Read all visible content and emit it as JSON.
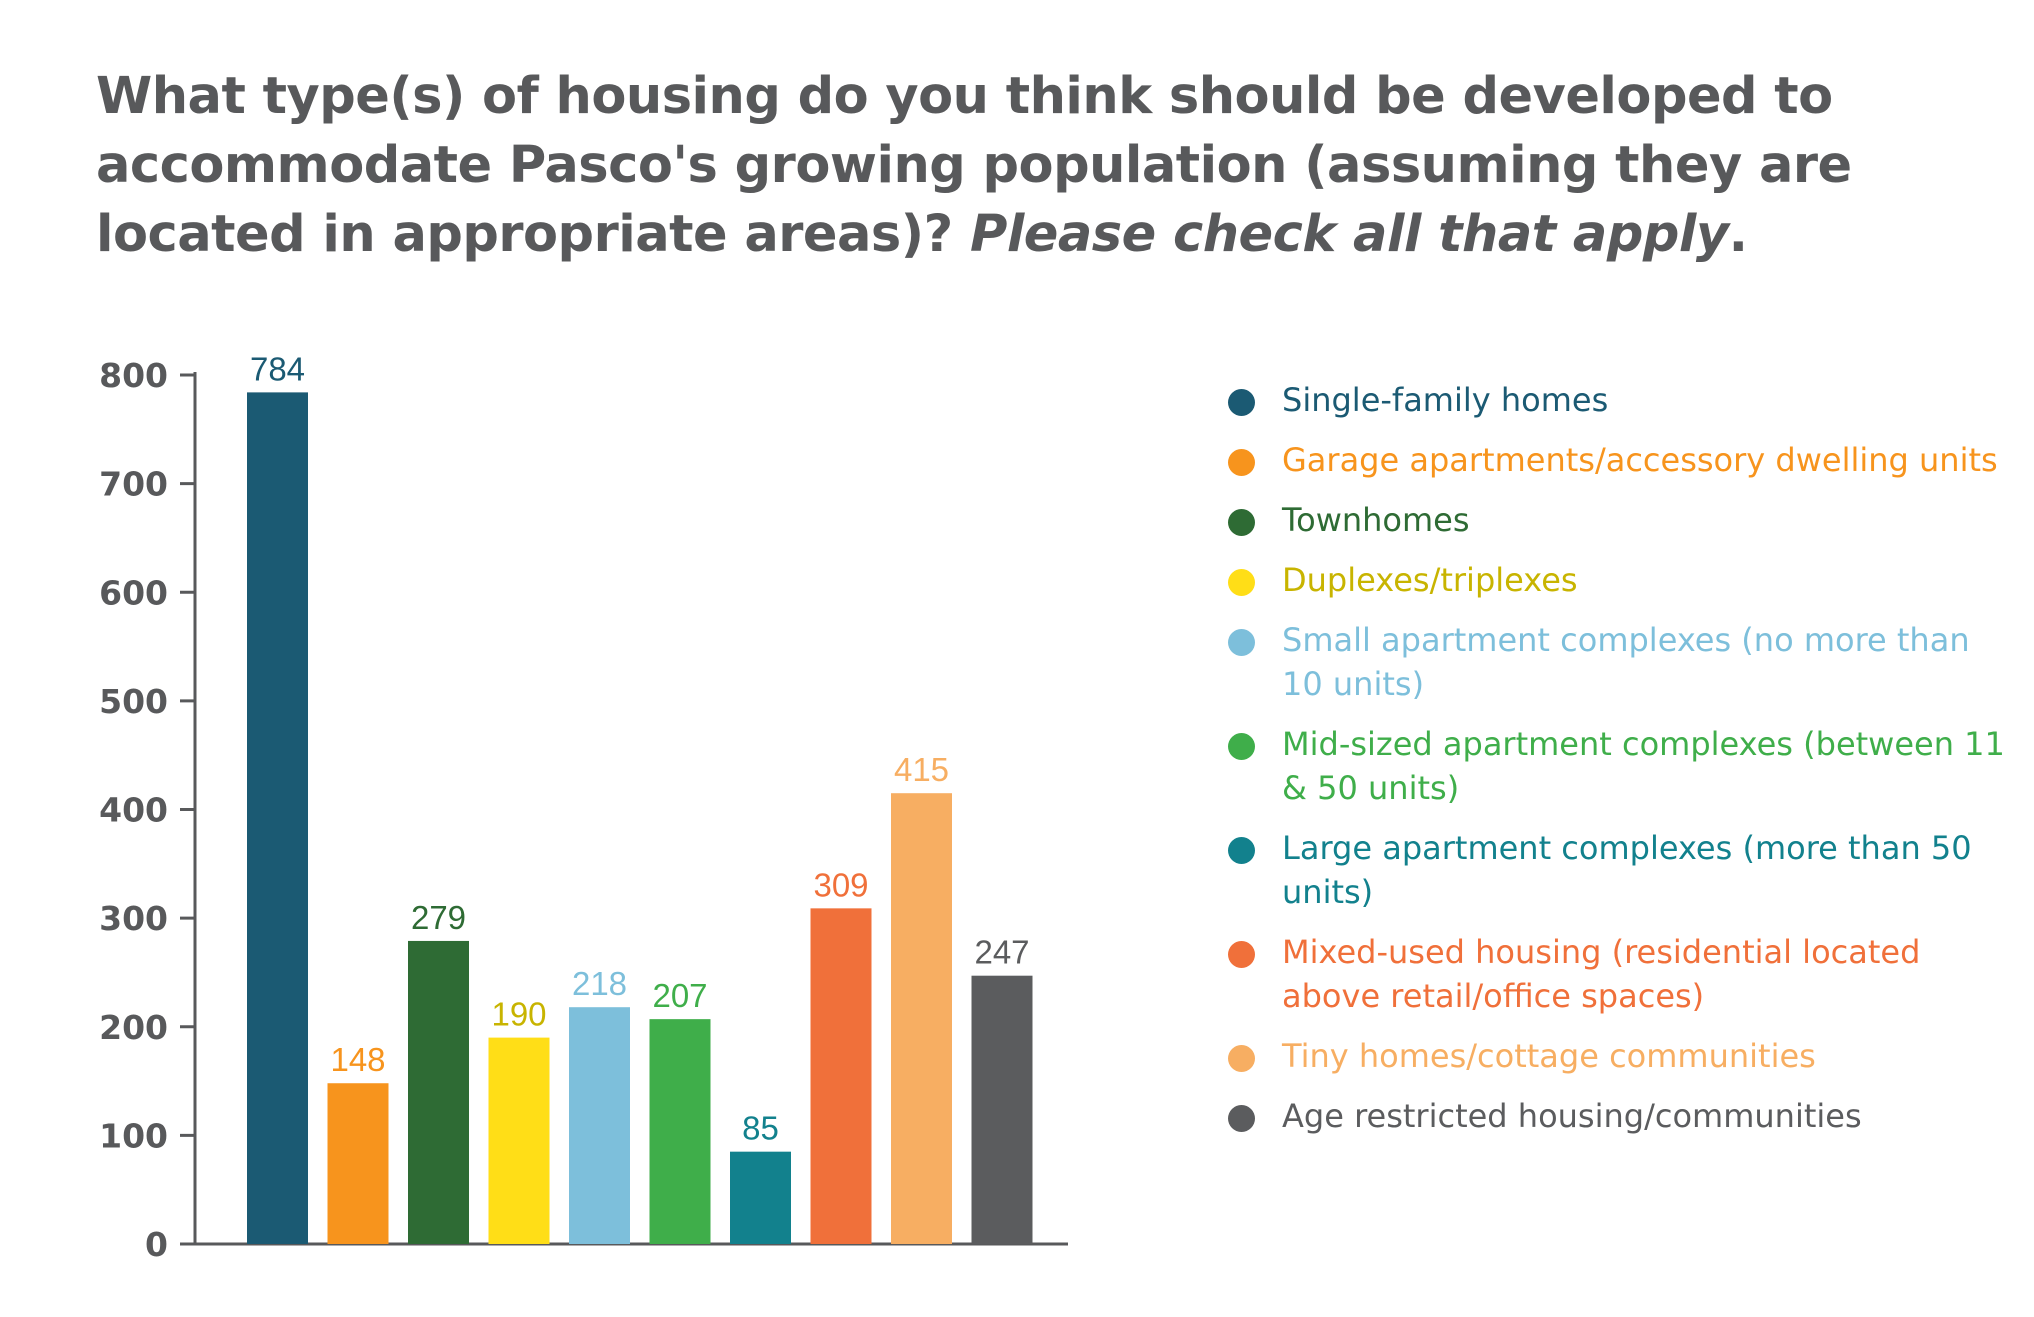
{
  "title": {
    "main": "What type(s) of housing do you think should be developed to accommodate Pasco's growing population (assuming they are located in appropriate areas)?",
    "emphasis": "Please check all that apply",
    "end": "."
  },
  "chart_data": {
    "type": "bar",
    "title": "What type(s) of housing do you think should be developed to accommodate Pasco's growing population (assuming they are located in appropriate areas)? Please check all that apply.",
    "xlabel": "",
    "ylabel": "",
    "ylim": [
      0,
      800
    ],
    "yticks": [
      0,
      100,
      200,
      300,
      400,
      500,
      600,
      700,
      800
    ],
    "grid": false,
    "legend_position": "right",
    "categories": [
      "Single-family homes",
      "Garage apartments/accessory dwelling units",
      "Townhomes",
      "Duplexes/triplexes",
      "Small apartment complexes (no more than 10 units)",
      "Mid-sized apartment complexes (between 11 & 50 units)",
      "Large apartment complexes (more than 50 units)",
      "Mixed-used housing (residential located above retail/office spaces)",
      "Tiny homes/cottage communities",
      "Age restricted housing/communities"
    ],
    "values": [
      784,
      148,
      279,
      190,
      218,
      207,
      85,
      309,
      415,
      247
    ],
    "colors": [
      "#1b5a73",
      "#f7941d",
      "#2e6b34",
      "#ffde17",
      "#7dbfdb",
      "#3fae4a",
      "#12818d",
      "#f0703a",
      "#f7ae62",
      "#5b5c5e"
    ],
    "label_colors": [
      "#1b5a73",
      "#f7941d",
      "#2e6b34",
      "#c8b400",
      "#7dbfdb",
      "#3fae4a",
      "#12818d",
      "#f0703a",
      "#f7ae62",
      "#5b5c5e"
    ]
  }
}
